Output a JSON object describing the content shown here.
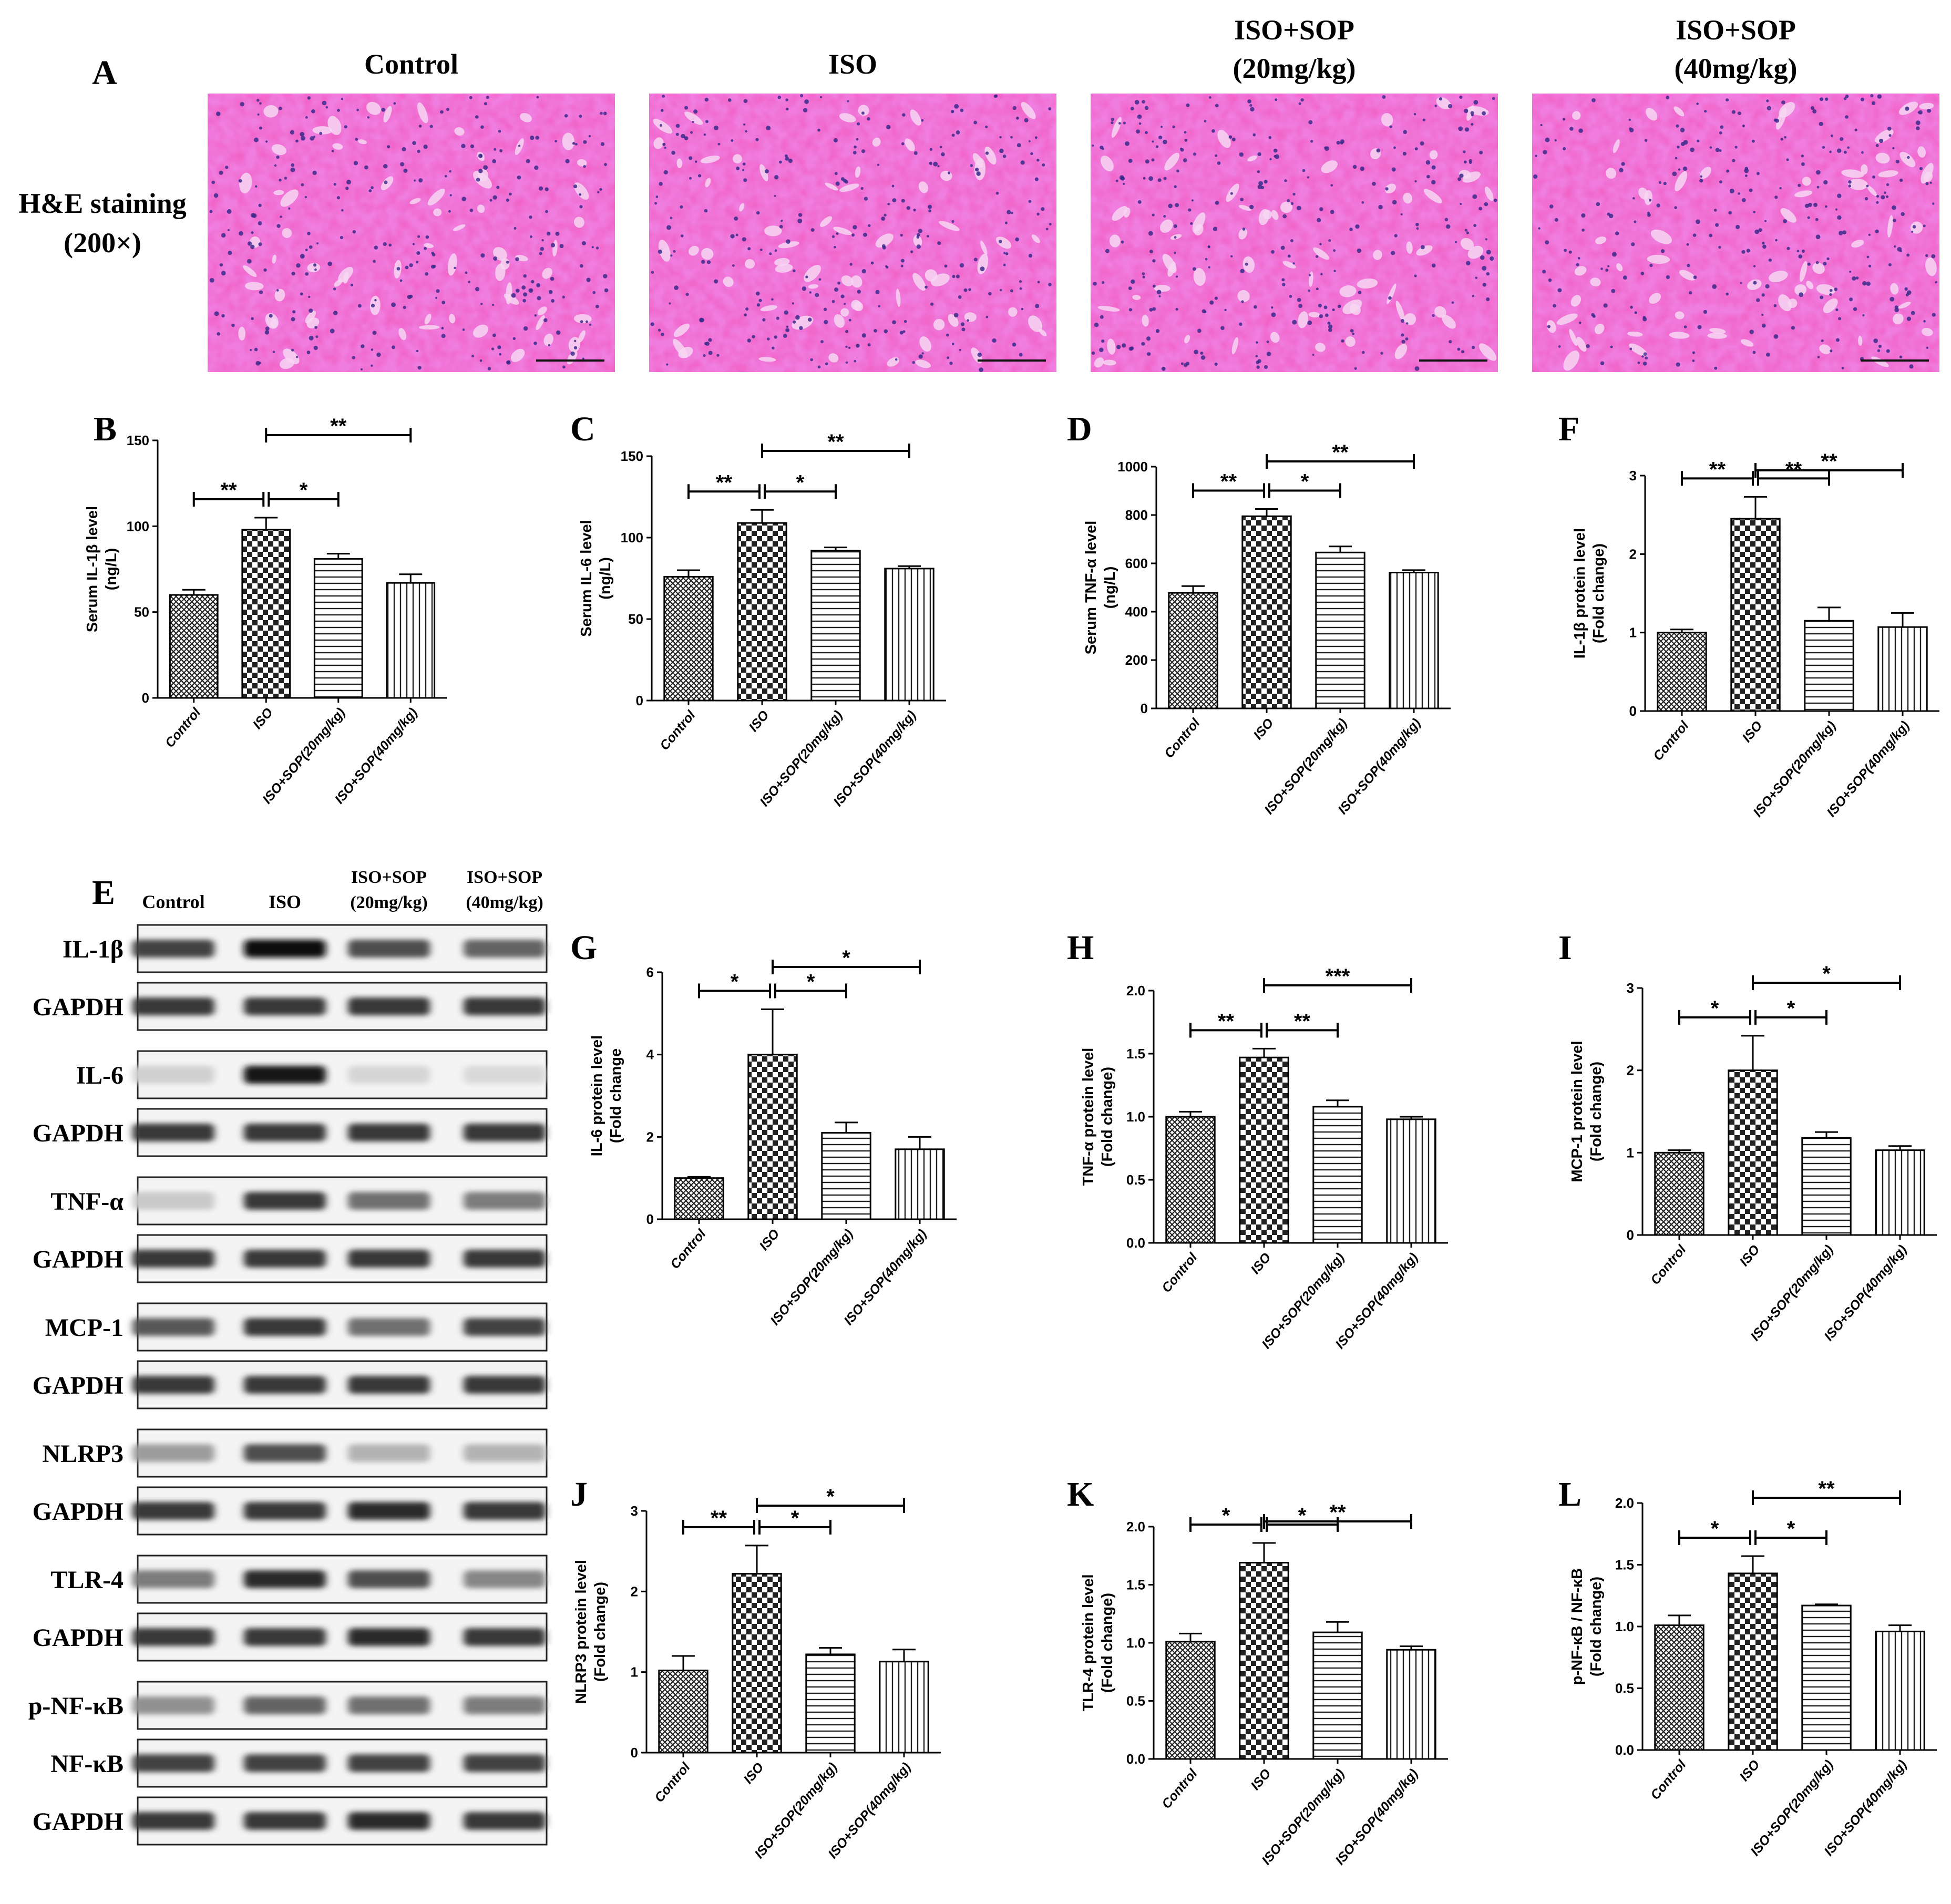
{
  "panels": {
    "A": "A",
    "B": "B",
    "C": "C",
    "D": "D",
    "E": "E",
    "F": "F",
    "G": "G",
    "H": "H",
    "I": "I",
    "J": "J",
    "K": "K",
    "L": "L"
  },
  "histology": {
    "row_label_line1": "H&E staining",
    "row_label_line2": "(200×)",
    "columns": [
      {
        "line1": "Control",
        "line2": ""
      },
      {
        "line1": "ISO",
        "line2": ""
      },
      {
        "line1": "ISO+SOP",
        "line2": "(20mg/kg)"
      },
      {
        "line1": "ISO+SOP",
        "line2": "(40mg/kg)"
      }
    ],
    "colors": {
      "background": "#f07ee0",
      "tissue": "#e0208f",
      "lumen": "#f7d6f2",
      "nuclei": "#3a2a8a"
    }
  },
  "western": {
    "columns": [
      {
        "line1": "Control",
        "line2": ""
      },
      {
        "line1": "ISO",
        "line2": ""
      },
      {
        "line1": "ISO+SOP",
        "line2": "(20mg/kg)"
      },
      {
        "line1": "ISO+SOP",
        "line2": "(40mg/kg)"
      }
    ],
    "blots": [
      {
        "label": "IL-1β",
        "intensity": [
          0.75,
          1.0,
          0.7,
          0.6
        ]
      },
      {
        "label": "GAPDH",
        "intensity": [
          0.8,
          0.8,
          0.8,
          0.8
        ]
      },
      {
        "label": "IL-6",
        "intensity": [
          0.12,
          0.95,
          0.1,
          0.08
        ]
      },
      {
        "label": "GAPDH",
        "intensity": [
          0.8,
          0.8,
          0.8,
          0.8
        ]
      },
      {
        "label": "TNF-α",
        "intensity": [
          0.15,
          0.8,
          0.55,
          0.5
        ]
      },
      {
        "label": "GAPDH",
        "intensity": [
          0.8,
          0.8,
          0.8,
          0.8
        ]
      },
      {
        "label": "MCP-1",
        "intensity": [
          0.65,
          0.8,
          0.55,
          0.75
        ]
      },
      {
        "label": "GAPDH",
        "intensity": [
          0.8,
          0.8,
          0.8,
          0.8
        ]
      },
      {
        "label": "NLRP3",
        "intensity": [
          0.35,
          0.7,
          0.25,
          0.25
        ]
      },
      {
        "label": "GAPDH",
        "intensity": [
          0.8,
          0.8,
          0.85,
          0.8
        ]
      },
      {
        "label": "TLR-4",
        "intensity": [
          0.5,
          0.85,
          0.7,
          0.45
        ]
      },
      {
        "label": "GAPDH",
        "intensity": [
          0.8,
          0.8,
          0.85,
          0.8
        ]
      },
      {
        "label": "p-NF-κB",
        "intensity": [
          0.4,
          0.6,
          0.55,
          0.5
        ]
      },
      {
        "label": "NF-κB",
        "intensity": [
          0.75,
          0.75,
          0.75,
          0.75
        ]
      },
      {
        "label": "GAPDH",
        "intensity": [
          0.8,
          0.8,
          0.85,
          0.8
        ]
      }
    ]
  },
  "chart_data": [
    {
      "panel": "B",
      "type": "bar",
      "categories": [
        "Control",
        "ISO",
        "ISO+SOP(20mg/kg)",
        "ISO+SOP(40mg/kg)"
      ],
      "values": [
        60,
        98,
        81,
        67
      ],
      "errors": [
        3,
        7,
        3,
        5
      ],
      "ylabel": [
        "Serum IL-1β level",
        "(ng/L)"
      ],
      "ylim": [
        0,
        150
      ],
      "yticks": [
        "0",
        "50",
        "100",
        "150"
      ],
      "significance": [
        {
          "from": 0,
          "to": 1,
          "label": "**"
        },
        {
          "from": 1,
          "to": 2,
          "label": "*"
        },
        {
          "from": 1,
          "to": 3,
          "label": "**"
        }
      ]
    },
    {
      "panel": "C",
      "type": "bar",
      "categories": [
        "Control",
        "ISO",
        "ISO+SOP(20mg/kg)",
        "ISO+SOP(40mg/kg)"
      ],
      "values": [
        76,
        109,
        92,
        81
      ],
      "errors": [
        4,
        8,
        2,
        1.5
      ],
      "ylabel": [
        "Serum IL-6 level",
        "(ng/L)"
      ],
      "ylim": [
        0,
        150
      ],
      "yticks": [
        "0",
        "50",
        "100",
        "150"
      ],
      "significance": [
        {
          "from": 0,
          "to": 1,
          "label": "**"
        },
        {
          "from": 1,
          "to": 2,
          "label": "*"
        },
        {
          "from": 1,
          "to": 3,
          "label": "**"
        }
      ]
    },
    {
      "panel": "D",
      "type": "bar",
      "categories": [
        "Control",
        "ISO",
        "ISO+SOP(20mg/kg)",
        "ISO+SOP(40mg/kg)"
      ],
      "values": [
        478,
        795,
        645,
        562
      ],
      "errors": [
        28,
        30,
        25,
        10
      ],
      "ylabel": [
        "Serum TNF-α level",
        "(ng/L)"
      ],
      "ylim": [
        0,
        1000
      ],
      "yticks": [
        "0",
        "200",
        "400",
        "600",
        "800",
        "1000"
      ],
      "significance": [
        {
          "from": 0,
          "to": 1,
          "label": "**"
        },
        {
          "from": 1,
          "to": 2,
          "label": "*"
        },
        {
          "from": 1,
          "to": 3,
          "label": "**"
        }
      ]
    },
    {
      "panel": "F",
      "type": "bar",
      "categories": [
        "Control",
        "ISO",
        "ISO+SOP(20mg/kg)",
        "ISO+SOP(40mg/kg)"
      ],
      "values": [
        1.0,
        2.45,
        1.15,
        1.07
      ],
      "errors": [
        0.04,
        0.28,
        0.17,
        0.18
      ],
      "ylabel": [
        "IL-1β protein level",
        "(Fold change)"
      ],
      "ylim": [
        0,
        3
      ],
      "yticks": [
        "0",
        "1",
        "2",
        "3"
      ],
      "significance": [
        {
          "from": 0,
          "to": 1,
          "label": "**"
        },
        {
          "from": 1,
          "to": 2,
          "label": "**"
        },
        {
          "from": 1,
          "to": 3,
          "label": "**"
        }
      ]
    },
    {
      "panel": "G",
      "type": "bar",
      "categories": [
        "Control",
        "ISO",
        "ISO+SOP(20mg/kg)",
        "ISO+SOP(40mg/kg)"
      ],
      "values": [
        1.0,
        4.0,
        2.1,
        1.7
      ],
      "errors": [
        0.03,
        1.1,
        0.25,
        0.3
      ],
      "ylabel": [
        "IL-6 protein level",
        "(Fold change"
      ],
      "ylim": [
        0,
        6
      ],
      "yticks": [
        "0",
        "2",
        "4",
        "6"
      ],
      "significance": [
        {
          "from": 0,
          "to": 1,
          "label": "*"
        },
        {
          "from": 1,
          "to": 2,
          "label": "*"
        },
        {
          "from": 1,
          "to": 3,
          "label": "*"
        }
      ]
    },
    {
      "panel": "H",
      "type": "bar",
      "categories": [
        "Control",
        "ISO",
        "ISO+SOP(20mg/kg)",
        "ISO+SOP(40mg/kg)"
      ],
      "values": [
        1.0,
        1.47,
        1.08,
        0.98
      ],
      "errors": [
        0.04,
        0.07,
        0.05,
        0.02
      ],
      "ylabel": [
        "TNF-α protein level",
        "(Fold change)"
      ],
      "ylim": [
        0,
        2.0
      ],
      "yticks": [
        "0.0",
        "0.5",
        "1.0",
        "1.5",
        "2.0"
      ],
      "significance": [
        {
          "from": 0,
          "to": 1,
          "label": "**"
        },
        {
          "from": 1,
          "to": 2,
          "label": "**"
        },
        {
          "from": 1,
          "to": 3,
          "label": "***"
        }
      ]
    },
    {
      "panel": "I",
      "type": "bar",
      "categories": [
        "Control",
        "ISO",
        "ISO+SOP(20mg/kg)",
        "ISO+SOP(40mg/kg)"
      ],
      "values": [
        1.0,
        2.0,
        1.18,
        1.03
      ],
      "errors": [
        0.03,
        0.42,
        0.07,
        0.05
      ],
      "ylabel": [
        "MCP-1 protein level",
        "(Fold change)"
      ],
      "ylim": [
        0,
        3
      ],
      "yticks": [
        "0",
        "1",
        "2",
        "3"
      ],
      "significance": [
        {
          "from": 0,
          "to": 1,
          "label": "*"
        },
        {
          "from": 1,
          "to": 2,
          "label": "*"
        },
        {
          "from": 1,
          "to": 3,
          "label": "*"
        }
      ]
    },
    {
      "panel": "J",
      "type": "bar",
      "categories": [
        "Control",
        "ISO",
        "ISO+SOP(20mg/kg)",
        "ISO+SOP(40mg/kg)"
      ],
      "values": [
        1.02,
        2.22,
        1.22,
        1.13
      ],
      "errors": [
        0.18,
        0.35,
        0.08,
        0.15
      ],
      "ylabel": [
        "NLRP3 protein level",
        "(Fold change)"
      ],
      "ylim": [
        0,
        3
      ],
      "yticks": [
        "0",
        "1",
        "2",
        "3"
      ],
      "significance": [
        {
          "from": 0,
          "to": 1,
          "label": "**"
        },
        {
          "from": 1,
          "to": 2,
          "label": "*"
        },
        {
          "from": 1,
          "to": 3,
          "label": "*"
        }
      ]
    },
    {
      "panel": "K",
      "type": "bar",
      "categories": [
        "Control",
        "ISO",
        "ISO+SOP(20mg/kg)",
        "ISO+SOP(40mg/kg)"
      ],
      "values": [
        1.01,
        1.69,
        1.09,
        0.94
      ],
      "errors": [
        0.07,
        0.17,
        0.09,
        0.03
      ],
      "ylabel": [
        "TLR-4 protein level",
        "(Fold change)"
      ],
      "ylim": [
        0,
        2.0
      ],
      "yticks": [
        "0.0",
        "0.5",
        "1.0",
        "1.5",
        "2.0"
      ],
      "significance": [
        {
          "from": 0,
          "to": 1,
          "label": "*"
        },
        {
          "from": 1,
          "to": 2,
          "label": "*"
        },
        {
          "from": 1,
          "to": 3,
          "label": "**"
        }
      ]
    },
    {
      "panel": "L",
      "type": "bar",
      "categories": [
        "Control",
        "ISO",
        "ISO+SOP(20mg/kg)",
        "ISO+SOP(40mg/kg)"
      ],
      "values": [
        1.01,
        1.43,
        1.17,
        0.96
      ],
      "errors": [
        0.08,
        0.14,
        0.01,
        0.05
      ],
      "ylabel": [
        "p-NF-κB / NF-κB",
        "(Fold change)"
      ],
      "ylim": [
        0,
        2.0
      ],
      "yticks": [
        "0.0",
        "0.5",
        "1.0",
        "1.5",
        "2.0"
      ],
      "significance": [
        {
          "from": 0,
          "to": 1,
          "label": "*"
        },
        {
          "from": 1,
          "to": 2,
          "label": "*"
        },
        {
          "from": 1,
          "to": 3,
          "label": "**"
        }
      ]
    }
  ]
}
